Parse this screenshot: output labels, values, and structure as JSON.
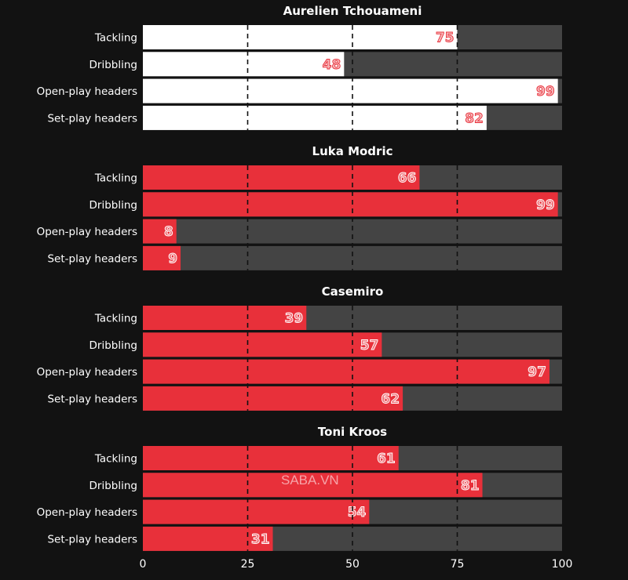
{
  "chart_data": {
    "type": "bar",
    "orientation": "horizontal",
    "xlim": [
      0,
      100
    ],
    "xticks": [
      0,
      25,
      50,
      75,
      100
    ],
    "grid": "dashed vertical at 25, 50, 75",
    "categories": [
      "Tackling",
      "Dribbling",
      "Open-play headers",
      "Set-play headers"
    ],
    "panels": [
      {
        "title": "Aurelien Tchouameni",
        "values": [
          75,
          48,
          99,
          82
        ],
        "color": "#ffffff",
        "label_color": "#e8303a"
      },
      {
        "title": "Luka Modric",
        "values": [
          66,
          99,
          8,
          9
        ],
        "color": "#e8303a",
        "label_color": "#ffffff"
      },
      {
        "title": "Casemiro",
        "values": [
          39,
          57,
          97,
          62
        ],
        "color": "#e8303a",
        "label_color": "#ffffff"
      },
      {
        "title": "Toni Kroos",
        "values": [
          61,
          81,
          54,
          31
        ],
        "color": "#e8303a",
        "label_color": "#ffffff"
      }
    ],
    "background_bar_color": "#444444"
  },
  "watermark": "SABA.VN"
}
